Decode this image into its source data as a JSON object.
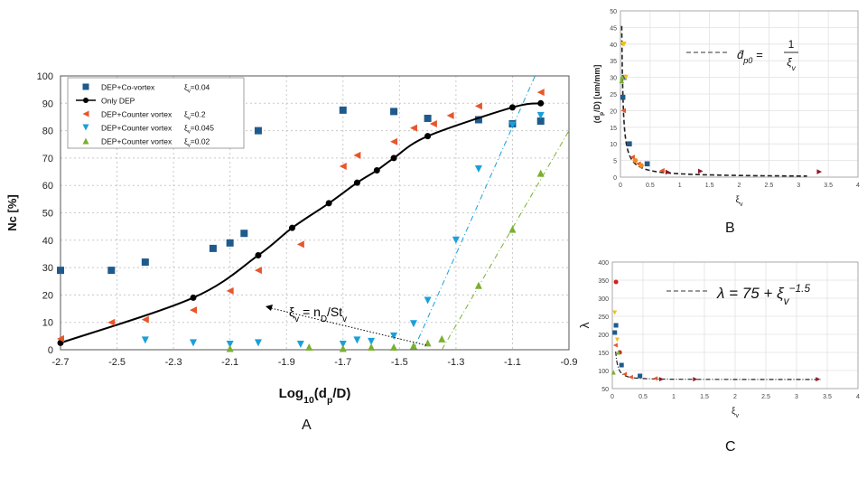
{
  "figure_labels": {
    "a": "A",
    "b": "B",
    "c": "C"
  },
  "chart_data": [
    {
      "id": "A",
      "type": "scatter",
      "xlabel_base": "Log",
      "xlabel_sub": "10",
      "xlabel_rest": "(d",
      "xlabel_sub2": "p",
      "xlabel_end": "/D)",
      "ylabel": "Nc [%]",
      "xlim": [
        -2.7,
        -0.9
      ],
      "ylim": [
        0,
        100
      ],
      "xticks": [
        "-2.7",
        "-2.5",
        "-2.3",
        "-2.1",
        "-1.9",
        "-1.7",
        "-1.5",
        "-1.3",
        "-1.1",
        "-0.9"
      ],
      "xtick_values": [
        -2.7,
        -2.5,
        -2.3,
        -2.1,
        -1.9,
        -1.7,
        -1.5,
        -1.3,
        -1.1,
        -0.9
      ],
      "yticks": [
        "0",
        "10",
        "20",
        "30",
        "40",
        "50",
        "60",
        "70",
        "80",
        "90",
        "100"
      ],
      "ytick_values": [
        0,
        10,
        20,
        30,
        40,
        50,
        60,
        70,
        80,
        90,
        100
      ],
      "legend": [
        {
          "label": "DEP+Co-vortex",
          "xi": "ξ",
          "xi_sub": "v",
          "xi_val": "=0.04"
        },
        {
          "label": "Only DEP",
          "xi": "",
          "xi_sub": "",
          "xi_val": ""
        },
        {
          "label": "DEP+Counter vortex",
          "xi": "ξ",
          "xi_sub": "v",
          "xi_val": "=0.2"
        },
        {
          "label": "DEP+Counter vortex",
          "xi": "ξ",
          "xi_sub": "v",
          "xi_val": "=0.045"
        },
        {
          "label": "DEP+Counter vortex",
          "xi": "ξ",
          "xi_sub": "v",
          "xi_val": "=0.02"
        }
      ],
      "series": [
        {
          "name": "DEP+Co-vortex ξv=0.04",
          "marker": "square",
          "color": "#1f5a8c",
          "x": [
            -2.7,
            -2.52,
            -2.4,
            -2.16,
            -2.1,
            -2.05,
            -2.0,
            -1.7,
            -1.52,
            -1.4,
            -1.22,
            -1.1,
            -1.0
          ],
          "y": [
            29,
            29,
            32,
            37,
            39,
            42.5,
            80,
            87.5,
            87,
            84.5,
            84,
            82.5,
            83.5
          ]
        },
        {
          "name": "Only DEP",
          "marker": "circle",
          "color": "#000000",
          "line": true,
          "x": [
            -2.7,
            -2.23,
            -2.0,
            -1.88,
            -1.75,
            -1.65,
            -1.58,
            -1.52,
            -1.4,
            -1.1,
            -1.0
          ],
          "y": [
            2.5,
            19,
            34.5,
            44.5,
            53.5,
            61,
            65.5,
            70,
            78,
            88.5,
            90
          ]
        },
        {
          "name": "DEP+Counter vortex ξv=0.2",
          "marker": "tri-left",
          "color": "#e8562a",
          "x": [
            -2.7,
            -2.52,
            -2.4,
            -2.23,
            -2.1,
            -2.0,
            -1.85,
            -1.7,
            -1.65,
            -1.52,
            -1.45,
            -1.38,
            -1.32,
            -1.22,
            -1.0
          ],
          "y": [
            4,
            10,
            11,
            14.5,
            21.5,
            29,
            38.5,
            67,
            71,
            76,
            81,
            82.5,
            85.5,
            89,
            94
          ]
        },
        {
          "name": "DEP+Counter vortex ξv=0.045",
          "marker": "tri-down",
          "color": "#1aa0d8",
          "x": [
            -2.4,
            -2.23,
            -2.1,
            -2.0,
            -1.85,
            -1.7,
            -1.65,
            -1.6,
            -1.52,
            -1.45,
            -1.4,
            -1.3,
            -1.22,
            -1.1,
            -1.0
          ],
          "y": [
            3.5,
            2.5,
            2,
            2.5,
            2,
            2,
            3.5,
            3,
            5,
            9.5,
            18,
            40,
            66,
            82,
            85.5
          ]
        },
        {
          "name": "DEP+Counter vortex ξv=0.02",
          "marker": "tri-up",
          "color": "#7ab030",
          "x": [
            -2.1,
            -1.82,
            -1.7,
            -1.6,
            -1.52,
            -1.45,
            -1.4,
            -1.35,
            -1.22,
            -1.1,
            -1.0
          ],
          "y": [
            0.5,
            1,
            0.5,
            1,
            1,
            1.5,
            2.5,
            4,
            23.5,
            44,
            64.5
          ]
        }
      ],
      "fit_lines": [
        {
          "color": "#1aa0d8",
          "x": [
            -1.45,
            -1.02
          ],
          "y": [
            0,
            100
          ]
        },
        {
          "color": "#7ab030",
          "x": [
            -1.35,
            -0.9
          ],
          "y": [
            0,
            80
          ]
        }
      ],
      "annotation": {
        "xi": "ξ",
        "sub": "v",
        "eq": " = n",
        "sub2": "D",
        "slash": "/St",
        "sub3": "v"
      }
    },
    {
      "id": "B",
      "type": "scatter",
      "xlabel": "ξ",
      "xlabel_sub": "v",
      "ylabel": "(d",
      "ylabel_sub": "p",
      "ylabel_rest": "/D) [um/mm]",
      "xlim": [
        0,
        4
      ],
      "ylim": [
        0,
        50
      ],
      "xticks": [
        "0",
        "0.5",
        "1",
        "1.5",
        "2",
        "2.5",
        "3",
        "3.5",
        "4"
      ],
      "xtick_values": [
        0,
        0.5,
        1,
        1.5,
        2,
        2.5,
        3,
        3.5,
        4
      ],
      "yticks": [
        "0",
        "5",
        "10",
        "15",
        "20",
        "25",
        "30",
        "35",
        "40",
        "45",
        "50"
      ],
      "ytick_values": [
        0,
        5,
        10,
        15,
        20,
        25,
        30,
        35,
        40,
        45,
        50
      ],
      "legend_text": "d̂",
      "legend_sub": "p0",
      "legend_eq": " = ",
      "legend_num": "1",
      "legend_den": "ξ",
      "legend_den_sub": "v",
      "curve": {
        "type": "inverse",
        "k": 1,
        "color": "#222222"
      },
      "series": [
        {
          "name": "co-vortex",
          "marker": "square",
          "color": "#1f5a8c",
          "x": [
            0.04,
            0.06,
            0.15,
            0.45
          ],
          "y": [
            24,
            30,
            10,
            4
          ]
        },
        {
          "name": "counter 0.2",
          "marker": "tri-left",
          "color": "#e8562a",
          "x": [
            0.05,
            0.2,
            0.3,
            0.7
          ],
          "y": [
            20,
            6,
            4,
            2
          ]
        },
        {
          "name": "yellow",
          "marker": "tri-down",
          "color": "#f0c020",
          "x": [
            0.04,
            0.06,
            0.09
          ],
          "y": [
            40,
            40,
            30
          ]
        },
        {
          "name": "green",
          "marker": "tri-up",
          "color": "#7ab030",
          "x": [
            0.02,
            0.03
          ],
          "y": [
            29,
            30
          ]
        },
        {
          "name": "darkred",
          "marker": "tri-right",
          "color": "#8c1a2a",
          "x": [
            0.8,
            1.35,
            3.35
          ],
          "y": [
            1.5,
            1.8,
            1.6
          ]
        },
        {
          "name": "orange",
          "marker": "circle",
          "color": "#f08a20",
          "x": [
            0.25,
            0.35
          ],
          "y": [
            5,
            3.5
          ]
        }
      ]
    },
    {
      "id": "C",
      "type": "scatter",
      "xlabel": "ξ",
      "xlabel_sub": "v",
      "ylabel": "λ",
      "xlim": [
        0,
        4
      ],
      "ylim": [
        50,
        400
      ],
      "xticks": [
        "0",
        "0.5",
        "1",
        "1.5",
        "2",
        "2.5",
        "3",
        "3.5",
        "4"
      ],
      "xtick_values": [
        0,
        0.5,
        1,
        1.5,
        2,
        2.5,
        3,
        3.5,
        4
      ],
      "yticks": [
        "50",
        "100",
        "150",
        "200",
        "250",
        "300",
        "350",
        "400"
      ],
      "ytick_values": [
        50,
        100,
        150,
        200,
        250,
        300,
        350,
        400
      ],
      "legend_lambda": "λ",
      "legend_eq": " = 75 + ",
      "legend_xi": "ξ",
      "legend_sub": "v",
      "legend_exp": "−1.5",
      "curve": {
        "type": "power",
        "a": 75,
        "b": -1.5,
        "color": "#222222"
      },
      "series": [
        {
          "name": "co-vortex",
          "marker": "square",
          "color": "#1f5a8c",
          "x": [
            0.04,
            0.06,
            0.15,
            0.45
          ],
          "y": [
            205,
            225,
            115,
            85
          ]
        },
        {
          "name": "counter 0.2",
          "marker": "tri-left",
          "color": "#e8562a",
          "x": [
            0.05,
            0.2,
            0.3,
            0.7
          ],
          "y": [
            170,
            90,
            82,
            78
          ]
        },
        {
          "name": "red",
          "marker": "circle",
          "color": "#d42020",
          "x": [
            0.06,
            0.12
          ],
          "y": [
            345,
            150
          ]
        },
        {
          "name": "yellow",
          "marker": "tri-down",
          "color": "#f0c020",
          "x": [
            0.04,
            0.08
          ],
          "y": [
            260,
            185
          ]
        },
        {
          "name": "green",
          "marker": "tri-up",
          "color": "#7ab030",
          "x": [
            0.02,
            0.1
          ],
          "y": [
            95,
            150
          ]
        },
        {
          "name": "darkred",
          "marker": "tri-right",
          "color": "#8c1a2a",
          "x": [
            0.8,
            1.35,
            3.35
          ],
          "y": [
            76,
            76,
            76
          ]
        }
      ]
    }
  ]
}
